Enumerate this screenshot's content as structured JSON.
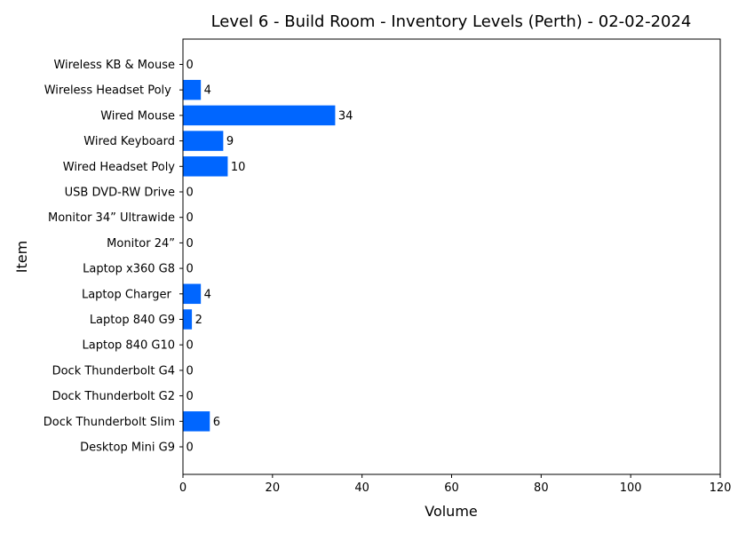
{
  "chart_data": {
    "type": "bar",
    "orientation": "horizontal",
    "title": "Level 6 - Build Room - Inventory Levels (Perth) - 02-02-2024",
    "xlabel": "Volume",
    "ylabel": "Item",
    "xlim": [
      0,
      120
    ],
    "xticks": [
      0,
      20,
      40,
      60,
      80,
      100,
      120
    ],
    "grid": false,
    "bar_color": "#0066ff",
    "categories": [
      "Desktop Mini G9",
      "Dock Thunderbolt Slim",
      "Dock Thunderbolt G2",
      "Dock Thunderbolt G4",
      "Laptop 840 G10",
      "Laptop 840 G9",
      "Laptop Charger ",
      "Laptop x360 G8",
      "Monitor 24”",
      "Monitor 34” Ultrawide",
      "USB DVD-RW Drive",
      "Wired Headset Poly",
      "Wired Keyboard",
      "Wired Mouse",
      "Wireless Headset Poly ",
      "Wireless KB & Mouse"
    ],
    "values": [
      0,
      6,
      0,
      0,
      0,
      2,
      4,
      0,
      0,
      0,
      0,
      10,
      9,
      34,
      4,
      0
    ]
  }
}
